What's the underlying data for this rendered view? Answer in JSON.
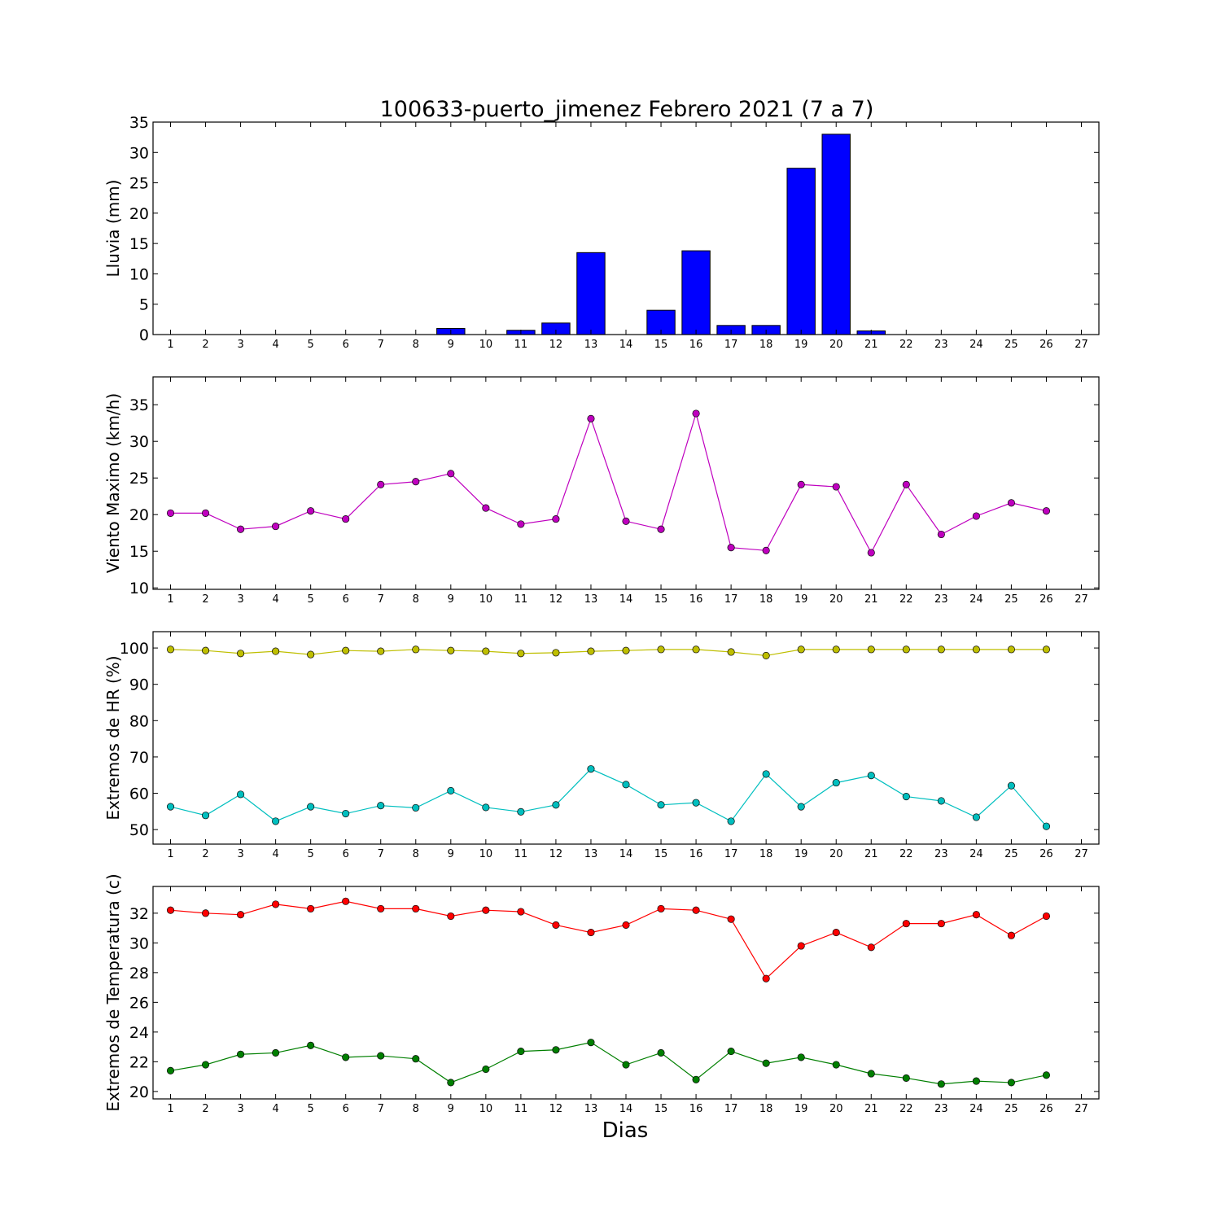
{
  "title": "100633-puerto_jimenez Febrero 2021  (7 a 7)",
  "xlabel": "Dias",
  "chart_data": [
    {
      "type": "bar",
      "ylabel": "Lluvia (mm)",
      "xlim": [
        0.5,
        27.5
      ],
      "ylim": [
        0,
        35
      ],
      "yticks": [
        0,
        5,
        10,
        15,
        20,
        25,
        30,
        35
      ],
      "xticks": [
        1,
        2,
        3,
        4,
        5,
        6,
        7,
        8,
        9,
        10,
        11,
        12,
        13,
        14,
        15,
        16,
        17,
        18,
        19,
        20,
        21,
        22,
        23,
        24,
        25,
        26,
        27
      ],
      "series": [
        {
          "color": "#0000ff",
          "x": [
            1,
            2,
            3,
            4,
            5,
            6,
            7,
            8,
            9,
            10,
            11,
            12,
            13,
            14,
            15,
            16,
            17,
            18,
            19,
            20,
            21,
            22,
            23,
            24,
            25,
            26
          ],
          "values": [
            0,
            0,
            0,
            0,
            0,
            0,
            0,
            0,
            1.0,
            0,
            0.7,
            1.9,
            13.5,
            0,
            4.0,
            13.8,
            1.5,
            1.5,
            27.4,
            33.0,
            0.6,
            0,
            0,
            0,
            0,
            0
          ]
        }
      ]
    },
    {
      "type": "line",
      "ylabel": "Viento Maximo (km/h)",
      "xlim": [
        0.5,
        27.5
      ],
      "ylim": [
        9.8,
        38.8
      ],
      "yticks": [
        10,
        15,
        20,
        25,
        30,
        35
      ],
      "xticks": [
        1,
        2,
        3,
        4,
        5,
        6,
        7,
        8,
        9,
        10,
        11,
        12,
        13,
        14,
        15,
        16,
        17,
        18,
        19,
        20,
        21,
        22,
        23,
        24,
        25,
        26,
        27
      ],
      "series": [
        {
          "color": "#bf00bf",
          "x": [
            1,
            2,
            3,
            4,
            5,
            6,
            7,
            8,
            9,
            10,
            11,
            12,
            13,
            14,
            15,
            16,
            17,
            18,
            19,
            20,
            21,
            22,
            23,
            24,
            25,
            26
          ],
          "values": [
            20.2,
            20.2,
            18.0,
            18.4,
            20.5,
            19.4,
            24.1,
            24.5,
            25.6,
            20.9,
            18.7,
            19.4,
            33.1,
            19.1,
            18.0,
            33.8,
            15.5,
            15.1,
            24.1,
            23.8,
            14.8,
            24.1,
            17.3,
            19.8,
            21.6,
            20.5
          ]
        }
      ]
    },
    {
      "type": "line",
      "ylabel": "Extremos de HR (%)",
      "xlim": [
        0.5,
        27.5
      ],
      "ylim": [
        46,
        104.5
      ],
      "yticks": [
        50,
        60,
        70,
        80,
        90,
        100
      ],
      "xticks": [
        1,
        2,
        3,
        4,
        5,
        6,
        7,
        8,
        9,
        10,
        11,
        12,
        13,
        14,
        15,
        16,
        17,
        18,
        19,
        20,
        21,
        22,
        23,
        24,
        25,
        26,
        27
      ],
      "series": [
        {
          "color": "#bfbf00",
          "x": [
            1,
            2,
            3,
            4,
            5,
            6,
            7,
            8,
            9,
            10,
            11,
            12,
            13,
            14,
            15,
            16,
            17,
            18,
            19,
            20,
            21,
            22,
            23,
            24,
            25,
            26
          ],
          "values": [
            99.6,
            99.3,
            98.5,
            99.1,
            98.2,
            99.3,
            99.1,
            99.6,
            99.3,
            99.1,
            98.5,
            98.7,
            99.1,
            99.3,
            99.6,
            99.6,
            98.9,
            97.9,
            99.6,
            99.6,
            99.6,
            99.6,
            99.6,
            99.6,
            99.6,
            99.6
          ]
        },
        {
          "color": "#00bfbf",
          "x": [
            1,
            2,
            3,
            4,
            5,
            6,
            7,
            8,
            9,
            10,
            11,
            12,
            13,
            14,
            15,
            16,
            17,
            18,
            19,
            20,
            21,
            22,
            23,
            24,
            25,
            26
          ],
          "values": [
            56.3,
            53.9,
            59.7,
            52.3,
            56.3,
            54.4,
            56.6,
            56.0,
            60.7,
            56.1,
            54.9,
            56.8,
            66.7,
            62.4,
            56.8,
            57.4,
            52.3,
            65.3,
            56.3,
            62.9,
            64.9,
            59.1,
            57.9,
            53.4,
            62.1,
            50.9
          ]
        }
      ]
    },
    {
      "type": "line",
      "ylabel": "Extremos de Temperatura (c)",
      "xlim": [
        0.5,
        27.5
      ],
      "ylim": [
        19.5,
        33.8
      ],
      "yticks": [
        20,
        22,
        24,
        26,
        28,
        30,
        32
      ],
      "xticks": [
        1,
        2,
        3,
        4,
        5,
        6,
        7,
        8,
        9,
        10,
        11,
        12,
        13,
        14,
        15,
        16,
        17,
        18,
        19,
        20,
        21,
        22,
        23,
        24,
        25,
        26,
        27
      ],
      "series": [
        {
          "color": "#ff0000",
          "x": [
            1,
            2,
            3,
            4,
            5,
            6,
            7,
            8,
            9,
            10,
            11,
            12,
            13,
            14,
            15,
            16,
            17,
            18,
            19,
            20,
            21,
            22,
            23,
            24,
            25,
            26
          ],
          "values": [
            32.2,
            32.0,
            31.9,
            32.6,
            32.3,
            32.8,
            32.3,
            32.3,
            31.8,
            32.2,
            32.1,
            31.2,
            30.7,
            31.2,
            32.3,
            32.2,
            31.6,
            27.6,
            29.8,
            30.7,
            29.7,
            31.3,
            31.3,
            31.9,
            30.5,
            31.8
          ]
        },
        {
          "color": "#007f00",
          "x": [
            1,
            2,
            3,
            4,
            5,
            6,
            7,
            8,
            9,
            10,
            11,
            12,
            13,
            14,
            15,
            16,
            17,
            18,
            19,
            20,
            21,
            22,
            23,
            24,
            25,
            26
          ],
          "values": [
            21.4,
            21.8,
            22.5,
            22.6,
            23.1,
            22.3,
            22.4,
            22.2,
            20.6,
            21.5,
            22.7,
            22.8,
            23.3,
            21.8,
            22.6,
            20.8,
            22.7,
            21.9,
            22.3,
            21.8,
            21.2,
            20.9,
            20.5,
            20.7,
            20.6,
            21.1
          ]
        }
      ]
    }
  ]
}
